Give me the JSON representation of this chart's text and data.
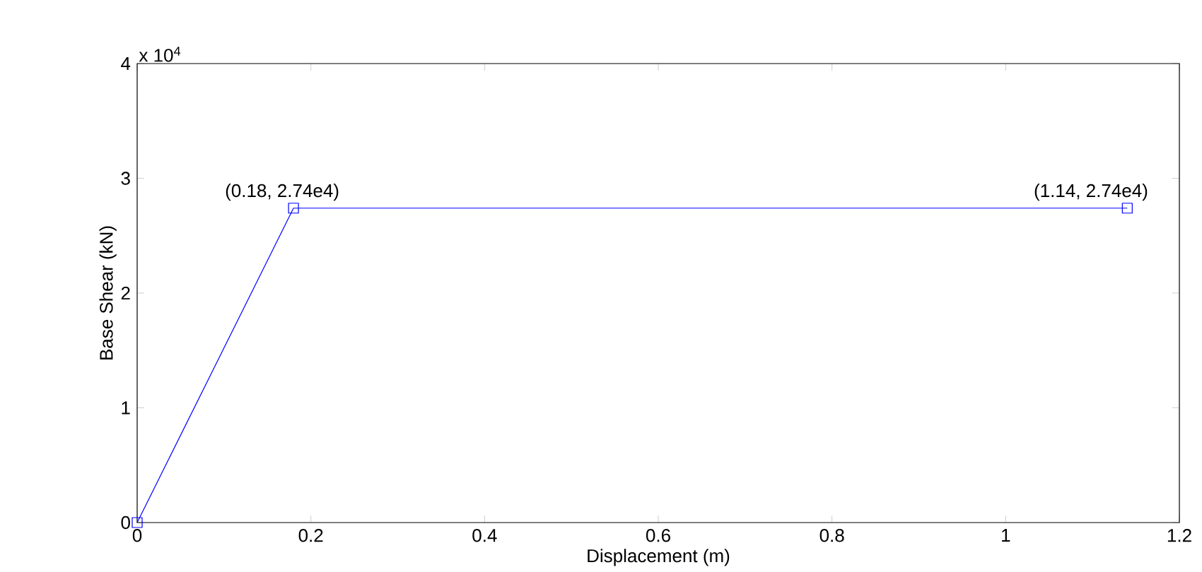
{
  "chart_data": {
    "type": "line",
    "xlabel": "Displacement (m)",
    "ylabel": "Base Shear (kN)",
    "x": [
      0,
      0.18,
      1.14
    ],
    "series": [
      {
        "color": "#0000ff",
        "values": [
          0,
          2.74,
          2.74
        ]
      }
    ],
    "marker": "square",
    "line_style": "solid",
    "grid": false,
    "xlim": [
      0,
      1.2
    ],
    "xticks": [
      0,
      0.2,
      0.4,
      0.6,
      0.8,
      1,
      1.2
    ],
    "ylim": [
      0,
      4
    ],
    "yticks": [
      0,
      1,
      2,
      3,
      4
    ],
    "annotations": [
      "x 10$^{4}$",
      {
        "text": "(0.18, 2.74e4)",
        "x": 0.18,
        "y": 2.74
      },
      {
        "text": "(1.14, 2.74e4)",
        "x": 1.14,
        "y": 2.74
      }
    ]
  }
}
